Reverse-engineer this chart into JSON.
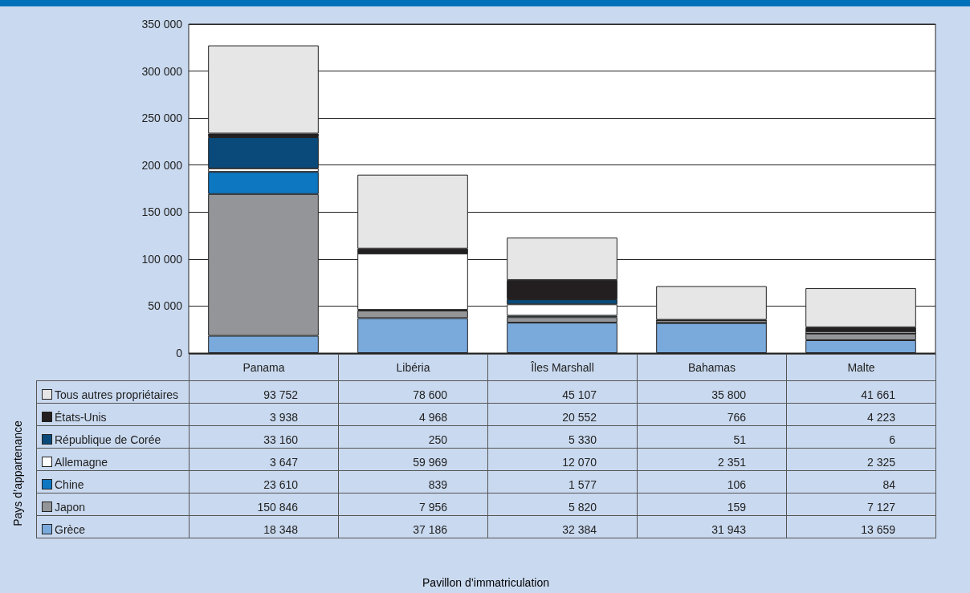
{
  "chart_data": {
    "type": "bar",
    "stacked": true,
    "annotations": [
      "Pays d’appartenance",
      "Pavillon d’immatriculation"
    ],
    "categories": [
      "Panama",
      "Libéria",
      "Îles Marshall",
      "Bahamas",
      "Malte"
    ],
    "series": [
      {
        "name": "Grèce",
        "color": "#7aaadc",
        "values": [
          18348,
          37186,
          32384,
          31943,
          13659
        ]
      },
      {
        "name": "Japon",
        "color": "#939598",
        "values": [
          150846,
          7956,
          5820,
          159,
          7127
        ]
      },
      {
        "name": "Chine",
        "color": "#0d77c2",
        "values": [
          23610,
          839,
          1577,
          106,
          84
        ]
      },
      {
        "name": "Allemagne",
        "color": "#ffffff",
        "values": [
          3647,
          59969,
          12070,
          2351,
          2325
        ]
      },
      {
        "name": "République de Corée",
        "color": "#0a4a7a",
        "values": [
          33160,
          250,
          5330,
          51,
          6
        ]
      },
      {
        "name": "États-Unis",
        "color": "#231f20",
        "values": [
          3938,
          4968,
          20552,
          766,
          4223
        ]
      },
      {
        "name": "Tous autres propriétaires",
        "color": "#e6e6e6",
        "values": [
          93752,
          78600,
          45107,
          35800,
          41661
        ]
      }
    ],
    "ylim": [
      0,
      350000
    ],
    "yticks": [
      0,
      50000,
      100000,
      150000,
      200000,
      250000,
      300000,
      350000
    ],
    "grid": "y",
    "legend": "bottom left",
    "data_labels": true
  }
}
